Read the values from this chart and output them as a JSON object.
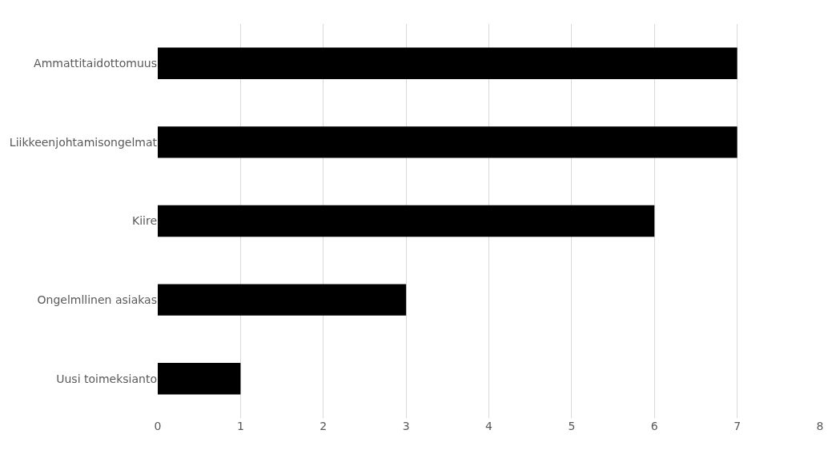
{
  "chart_data": {
    "type": "bar",
    "orientation": "horizontal",
    "categories": [
      "Ammattitaidottomuus",
      "Liikkeenjohtamisongelmat",
      "Kiire",
      "Ongelmllinen asiakas",
      "Uusi toimeksianto"
    ],
    "values": [
      7,
      7,
      6,
      3,
      1
    ],
    "color": "#000000",
    "xlim": [
      0,
      8
    ],
    "xticks": [
      0,
      1,
      2,
      3,
      4,
      5,
      6,
      7,
      8
    ],
    "grid": "x",
    "legend": false
  }
}
